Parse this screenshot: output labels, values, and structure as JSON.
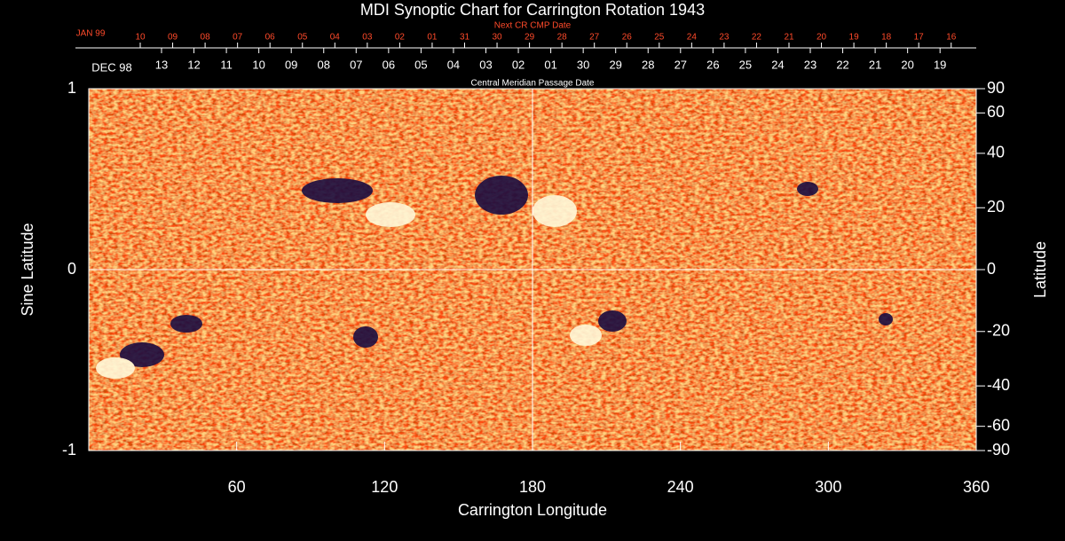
{
  "chart_data": {
    "type": "synoptic_map",
    "title": "MDI Synoptic Chart for Carrington Rotation 1943",
    "xlabel": "Carrington Longitude",
    "ylabel": "Sine Latitude",
    "y2label": "Latitude",
    "xlim": [
      0,
      360
    ],
    "xticks": [
      60,
      120,
      180,
      240,
      300,
      360
    ],
    "ylim": [
      -1,
      1
    ],
    "yticks": [
      -1,
      0,
      1
    ],
    "y2lim": [
      -90,
      90
    ],
    "y2scale": "sine",
    "y2ticks": [
      90,
      60,
      40,
      20,
      0,
      -20,
      -40,
      -60,
      -90
    ],
    "top_axis": {
      "label": "Next CR CMP Date",
      "start": "JAN 99",
      "dates": [
        "10",
        "09",
        "08",
        "07",
        "06",
        "05",
        "04",
        "03",
        "02",
        "01",
        "31",
        "30",
        "29",
        "28",
        "27",
        "26",
        "25",
        "24",
        "23",
        "22",
        "21",
        "20",
        "19",
        "18",
        "17",
        "16"
      ],
      "color": "#ff4a2a"
    },
    "date_axis": {
      "label": "Central Meridian Passage Date",
      "start": "DEC 98",
      "dates": [
        "13",
        "12",
        "11",
        "10",
        "09",
        "08",
        "07",
        "06",
        "05",
        "04",
        "03",
        "02",
        "01",
        "30",
        "29",
        "28",
        "27",
        "26",
        "25",
        "24",
        "23",
        "22",
        "21",
        "20",
        "19"
      ],
      "color": "#ffffff"
    }
  }
}
